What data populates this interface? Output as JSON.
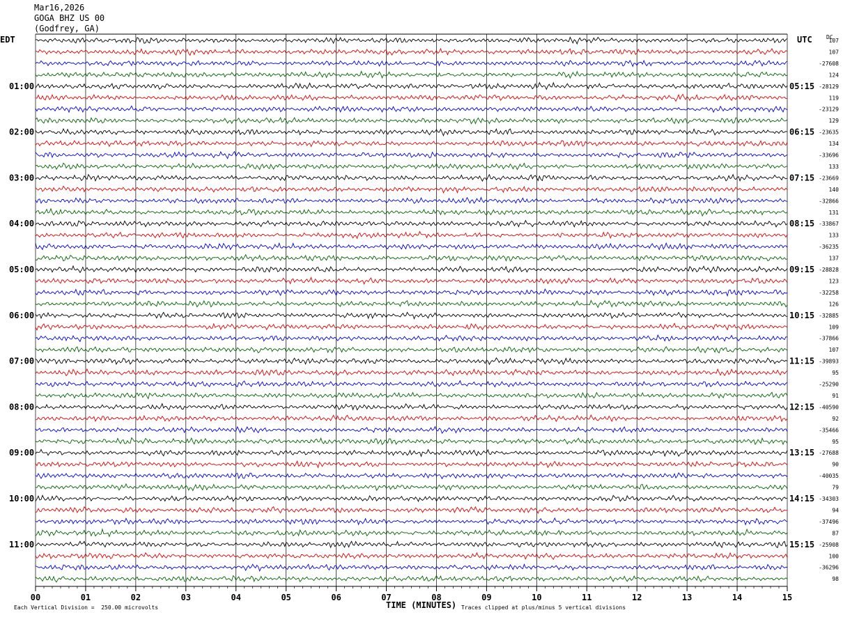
{
  "header": {
    "date": "Mar16,2026",
    "station": "GOGA BHZ US 00",
    "location": "(Godfrey, GA)"
  },
  "axes": {
    "left_tz": "EDT",
    "right_tz": "UTC",
    "dc_label": "DC",
    "xlabel": "TIME (MINUTES)"
  },
  "footer": {
    "scale": "Each Vertical Division =  250.00 microvolts",
    "clip": "Traces clipped at plus/minus 5 vertical divisions"
  },
  "colors": {
    "trace_cycle": [
      "#000000",
      "#e00000",
      "#0000e0",
      "#006400"
    ],
    "grid": "#000000"
  },
  "chart_data": {
    "type": "line",
    "title": "GOGA BHZ US 00 (Godfrey, GA) Mar16,2026",
    "x_ticks": [
      "00",
      "01",
      "02",
      "03",
      "04",
      "05",
      "06",
      "07",
      "08",
      "09",
      "10",
      "11",
      "12",
      "13",
      "14",
      "15"
    ],
    "xlim": [
      0,
      15
    ],
    "row_minutes": 15,
    "n_rows": 48,
    "left_hour_labels": [
      "01:00",
      "02:00",
      "03:00",
      "04:00",
      "05:00",
      "06:00",
      "07:00",
      "08:00",
      "09:00",
      "10:00",
      "11:00"
    ],
    "right_hour_labels": [
      "05:15",
      "06:15",
      "07:15",
      "08:15",
      "09:15",
      "10:15",
      "11:15",
      "12:15",
      "13:15",
      "14:15",
      "15:15"
    ],
    "dc_offsets": [
      "107",
      "107",
      "-27608",
      "124",
      "-28129",
      "119",
      "-23129",
      "129",
      "-23635",
      "134",
      "-33696",
      "133",
      "-23669",
      "140",
      "-32866",
      "131",
      "-33867",
      "133",
      "-36235",
      "137",
      "-28828",
      "123",
      "-32258",
      "126",
      "-32885",
      "109",
      "-37866",
      "107",
      "-39893",
      "95",
      "-25290",
      "91",
      "-40590",
      "92",
      "-35466",
      "95",
      "-27688",
      "90",
      "-40035",
      "79",
      "-34303",
      "94",
      "-37496",
      "87",
      "-25908",
      "100",
      "-36296",
      "98"
    ]
  }
}
